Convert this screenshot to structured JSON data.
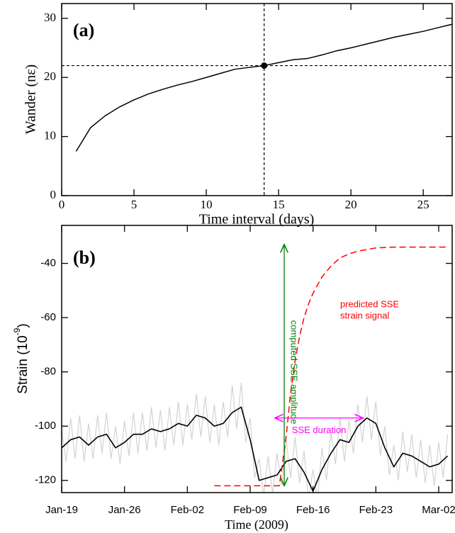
{
  "chart_data": [
    {
      "type": "line",
      "panel_label": "(a)",
      "xlabel": "Time interval (days)",
      "ylabel": "Wander (nε)",
      "xlim": [
        0,
        27
      ],
      "ylim": [
        0,
        32.5
      ],
      "xticks": [
        0,
        5,
        10,
        15,
        20,
        25
      ],
      "yticks": [
        0,
        10,
        20,
        30
      ],
      "series": [
        {
          "color": "#000000",
          "width": 1.5,
          "dash": false,
          "x": [
            1,
            2,
            3,
            4,
            5,
            6,
            7,
            8,
            9,
            10,
            11,
            12,
            13,
            14,
            15,
            16,
            17,
            18,
            19,
            20,
            21,
            22,
            23,
            24,
            25,
            26,
            27
          ],
          "values": [
            7.5,
            11.5,
            13.5,
            15,
            16.2,
            17.2,
            18,
            18.7,
            19.3,
            20,
            20.7,
            21.4,
            21.7,
            22,
            22.5,
            23,
            23.2,
            23.8,
            24.5,
            25,
            25.6,
            26.2,
            26.8,
            27.3,
            27.8,
            28.4,
            29
          ]
        }
      ],
      "hlines": [
        22
      ],
      "vlines": [
        14
      ],
      "marker": {
        "x": 14,
        "y": 22
      }
    },
    {
      "type": "line",
      "panel_label": "(b)",
      "xlabel": "Time (2009)",
      "ylabel": {
        "text": "Strain (10",
        "sup": "-9",
        "end": ")"
      },
      "xlim": [
        "2009-01-19",
        "2009-03-03 12:00"
      ],
      "ylim": [
        -124.5,
        -26
      ],
      "xticks": [
        {
          "value": "2009-01-19",
          "label": "Jan-19"
        },
        {
          "value": "2009-01-26",
          "label": "Jan-26"
        },
        {
          "value": "2009-02-02",
          "label": "Feb-02"
        },
        {
          "value": "2009-02-09",
          "label": "Feb-09"
        },
        {
          "value": "2009-02-16",
          "label": "Feb-16"
        },
        {
          "value": "2009-02-23",
          "label": "Feb-23"
        },
        {
          "value": "2009-03-02",
          "label": "Mar-02"
        }
      ],
      "yticks": [
        -120,
        -100,
        -80,
        -60,
        -40
      ],
      "series": [
        {
          "color": "#d3d3d3",
          "width": 1.2,
          "dash": false,
          "x": [
            "2009-01-19 00:00",
            "2009-01-19 12:00",
            "2009-01-20 00:00",
            "2009-01-20 12:00",
            "2009-01-21 00:00",
            "2009-01-21 12:00",
            "2009-01-22 00:00",
            "2009-01-22 12:00",
            "2009-01-23 00:00",
            "2009-01-23 12:00",
            "2009-01-24 00:00",
            "2009-01-24 12:00",
            "2009-01-25 00:00",
            "2009-01-25 12:00",
            "2009-01-26 00:00",
            "2009-01-26 12:00",
            "2009-01-27 00:00",
            "2009-01-27 12:00",
            "2009-01-28 00:00",
            "2009-01-28 12:00",
            "2009-01-29 00:00",
            "2009-01-29 12:00",
            "2009-01-30 00:00",
            "2009-01-30 12:00",
            "2009-01-31 00:00",
            "2009-01-31 12:00",
            "2009-02-01 00:00",
            "2009-02-01 12:00",
            "2009-02-02 00:00",
            "2009-02-02 12:00",
            "2009-02-03 00:00",
            "2009-02-03 12:00",
            "2009-02-04 00:00",
            "2009-02-04 12:00",
            "2009-02-05 00:00",
            "2009-02-05 12:00",
            "2009-02-06 00:00",
            "2009-02-06 12:00",
            "2009-02-07 00:00",
            "2009-02-07 12:00",
            "2009-02-08 00:00",
            "2009-02-08 12:00",
            "2009-02-09 00:00",
            "2009-02-09 12:00",
            "2009-02-10 00:00",
            "2009-02-10 12:00",
            "2009-02-11 00:00",
            "2009-02-11 12:00",
            "2009-02-12 00:00",
            "2009-02-12 12:00",
            "2009-02-13 00:00",
            "2009-02-13 12:00",
            "2009-02-14 00:00",
            "2009-02-14 12:00",
            "2009-02-15 00:00",
            "2009-02-15 12:00",
            "2009-02-16 00:00",
            "2009-02-16 12:00",
            "2009-02-17 00:00",
            "2009-02-17 12:00",
            "2009-02-18 00:00",
            "2009-02-18 12:00",
            "2009-02-19 00:00",
            "2009-02-19 12:00",
            "2009-02-20 00:00",
            "2009-02-20 12:00",
            "2009-02-21 00:00",
            "2009-02-21 12:00",
            "2009-02-22 00:00",
            "2009-02-22 12:00",
            "2009-02-23 00:00",
            "2009-02-23 12:00",
            "2009-02-24 00:00",
            "2009-02-24 12:00",
            "2009-02-25 00:00",
            "2009-02-25 12:00",
            "2009-02-26 00:00",
            "2009-02-26 12:00",
            "2009-02-27 00:00",
            "2009-02-27 12:00",
            "2009-02-28 00:00",
            "2009-02-28 12:00",
            "2009-03-01 00:00",
            "2009-03-01 12:00",
            "2009-03-02 00:00",
            "2009-03-02 12:00",
            "2009-03-03 00:00"
          ],
          "values": [
            -101,
            -113,
            -97,
            -112,
            -96,
            -113,
            -99,
            -112,
            -96,
            -110,
            -95,
            -112,
            -100,
            -114,
            -98,
            -111,
            -95,
            -110,
            -95,
            -109,
            -93,
            -108,
            -94,
            -109,
            -93,
            -107,
            -91,
            -107,
            -92,
            -105,
            -88,
            -104,
            -89,
            -106,
            -92,
            -107,
            -91,
            -104,
            -85,
            -101,
            -84,
            -106,
            -97,
            -119,
            -112,
            -126,
            -111,
            -125,
            -110,
            -122,
            -105,
            -119,
            -104,
            -121,
            -109,
            -127,
            -116,
            -127,
            -108,
            -120,
            -102,
            -114,
            -97,
            -113,
            -98,
            -110,
            -92,
            -106,
            -89,
            -105,
            -91,
            -111,
            -100,
            -118,
            -107,
            -120,
            -102,
            -117,
            -103,
            -119,
            -105,
            -121,
            -107,
            -122,
            -106,
            -119,
            -103
          ]
        },
        {
          "color": "#000000",
          "width": 1.6,
          "dash": false,
          "x": [
            "2009-01-19",
            "2009-01-20",
            "2009-01-21",
            "2009-01-22",
            "2009-01-23",
            "2009-01-24",
            "2009-01-25",
            "2009-01-26",
            "2009-01-27",
            "2009-01-28",
            "2009-01-29",
            "2009-01-30",
            "2009-01-31",
            "2009-02-01",
            "2009-02-02",
            "2009-02-03",
            "2009-02-04",
            "2009-02-05",
            "2009-02-06",
            "2009-02-07",
            "2009-02-08",
            "2009-02-09",
            "2009-02-10",
            "2009-02-11",
            "2009-02-12",
            "2009-02-13",
            "2009-02-14",
            "2009-02-15",
            "2009-02-16",
            "2009-02-17",
            "2009-02-18",
            "2009-02-19",
            "2009-02-20",
            "2009-02-21",
            "2009-02-22",
            "2009-02-23",
            "2009-02-24",
            "2009-02-25",
            "2009-02-26",
            "2009-02-27",
            "2009-02-28",
            "2009-03-01",
            "2009-03-02",
            "2009-03-03"
          ],
          "values": [
            -108,
            -105,
            -104,
            -107,
            -104,
            -103,
            -108,
            -106,
            -103,
            -103,
            -101,
            -102,
            -101,
            -99,
            -100,
            -96,
            -97,
            -100,
            -99,
            -95,
            -93,
            -105,
            -120,
            -119,
            -118,
            -113,
            -112,
            -117,
            -124,
            -116,
            -110,
            -105,
            -106,
            -100,
            -97,
            -99,
            -108,
            -115,
            -110,
            -111,
            -113,
            -115,
            -114,
            -111
          ]
        },
        {
          "color": "#ff0000",
          "width": 1.5,
          "dash": true,
          "x": [
            "2009-02-05 00:00",
            "2009-02-12 06:00",
            "2009-02-13 00:00",
            "2009-02-13 12:00",
            "2009-02-14 00:00",
            "2009-02-14 12:00",
            "2009-02-15 00:00",
            "2009-02-15 12:00",
            "2009-02-16 00:00",
            "2009-02-17 00:00",
            "2009-02-18 00:00",
            "2009-02-19 00:00",
            "2009-02-20 00:00",
            "2009-02-21 00:00",
            "2009-02-23 00:00",
            "2009-02-25 00:00",
            "2009-03-03 00:00"
          ],
          "values": [
            -122,
            -122,
            -104,
            -88,
            -76,
            -67,
            -60,
            -55,
            -51,
            -45,
            -41,
            -38,
            -36.5,
            -35.5,
            -34.3,
            -34,
            -34
          ]
        }
      ],
      "arrows": [
        {
          "color": "#008000",
          "x": "2009-02-12 19:00",
          "y": [
            -122,
            -33
          ],
          "label": "computed SSE amplitude"
        },
        {
          "color": "#ff00ff",
          "x": [
            "2009-02-11 18:00",
            "2009-02-21 14:00"
          ],
          "y": -97,
          "label": "SSE duration"
        }
      ],
      "notes": {
        "color": "#ff0000",
        "lines": [
          "predicted SSE",
          "strain signal"
        ]
      }
    }
  ]
}
